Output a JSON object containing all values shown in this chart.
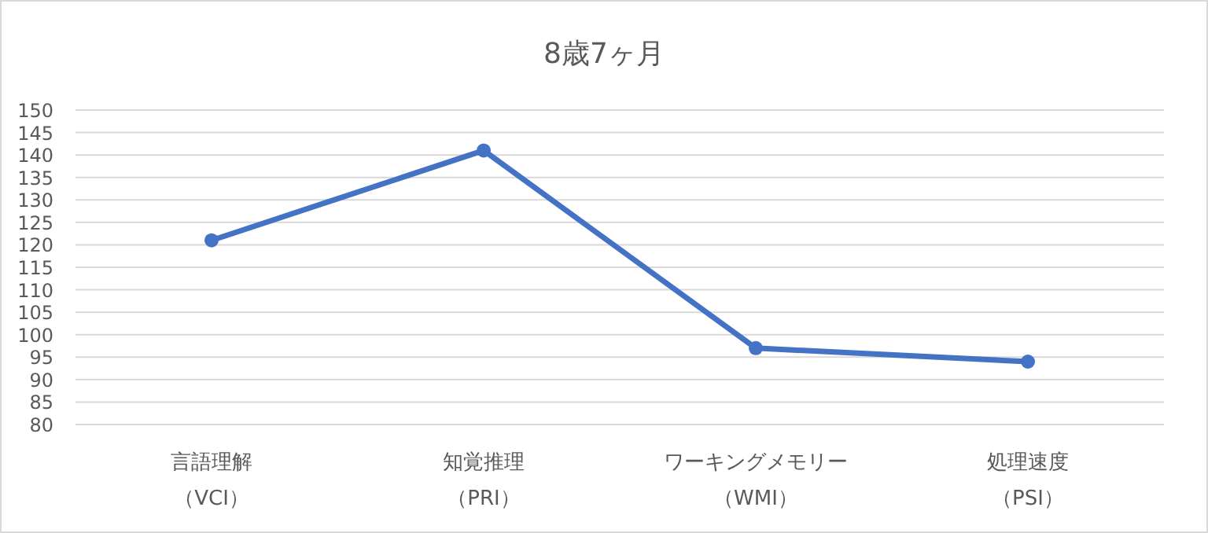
{
  "chart_data": {
    "type": "line",
    "title": "8歳7ヶ月",
    "categories": [
      "言語理解（VCI）",
      "知覚推理（PRI）",
      "ワーキングメモリー（WMI）",
      "処理速度（PSI）"
    ],
    "series": [
      {
        "color": "#4472c4",
        "values": [
          121,
          141,
          97,
          94
        ]
      }
    ],
    "ylim": [
      80,
      150
    ],
    "yticks": [
      80,
      85,
      90,
      95,
      100,
      105,
      110,
      115,
      120,
      125,
      130,
      135,
      140,
      145,
      150
    ],
    "grid": "y",
    "marker": "circle",
    "line_style": "solid"
  }
}
